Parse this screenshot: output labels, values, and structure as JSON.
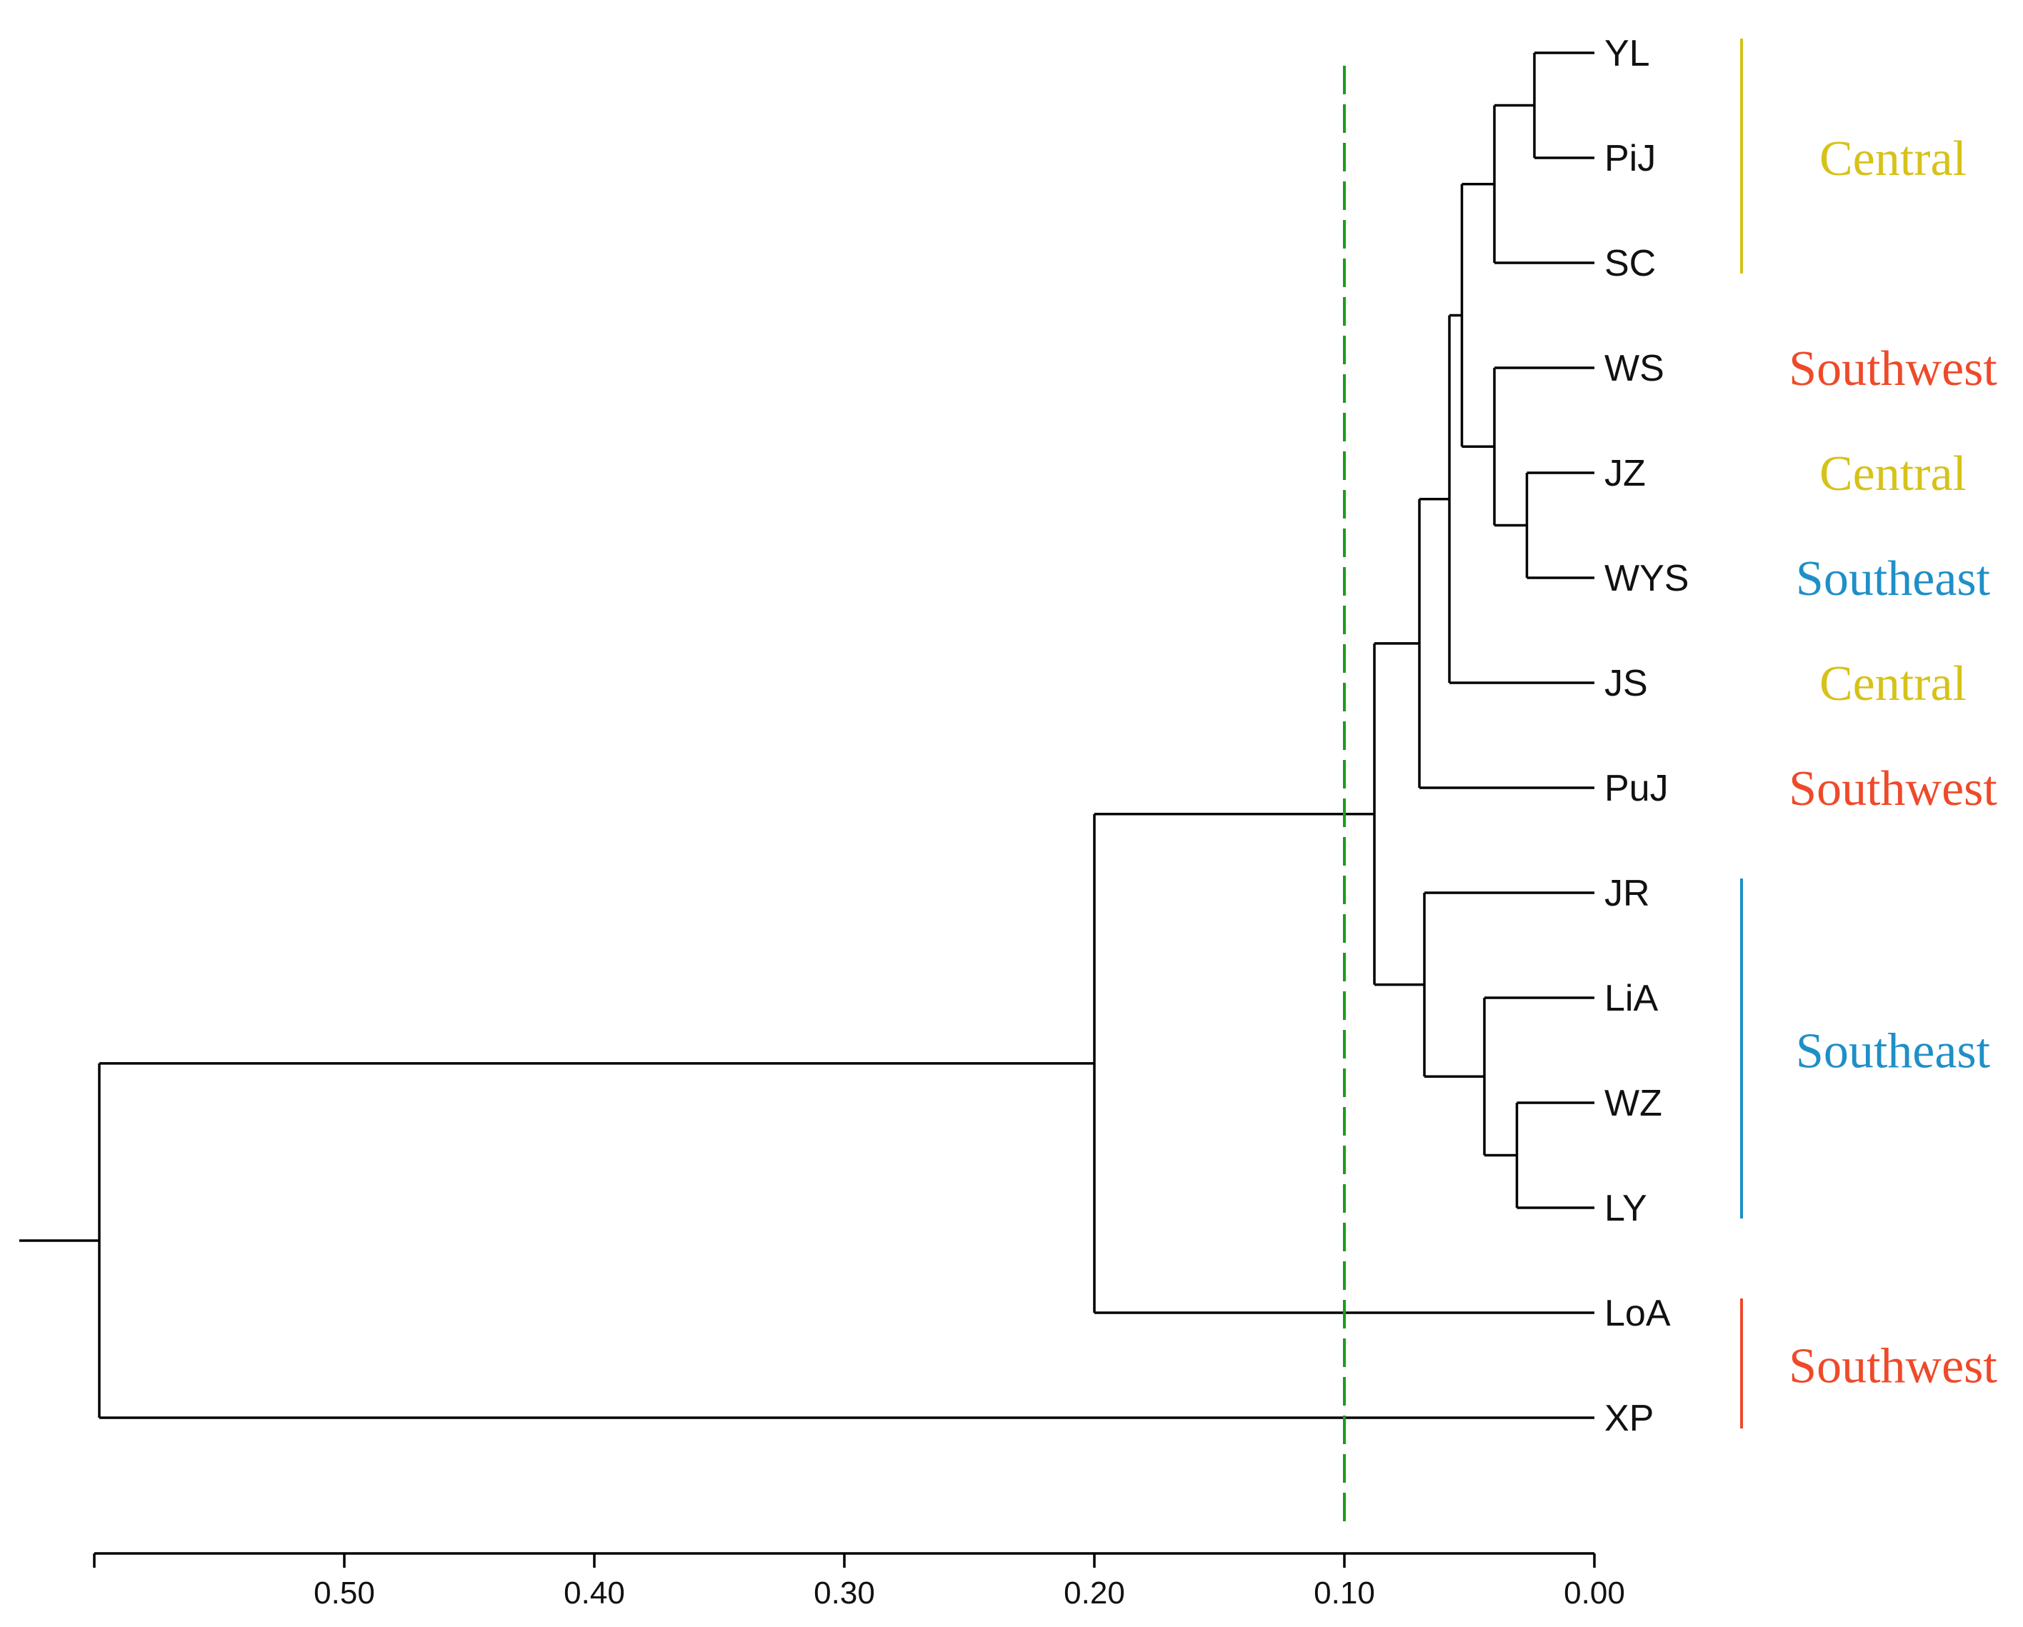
{
  "diagram": {
    "type": "dendrogram",
    "leaves": [
      "YL",
      "PiJ",
      "SC",
      "WS",
      "JZ",
      "WYS",
      "JS",
      "PuJ",
      "JR",
      "LiA",
      "WZ",
      "LY",
      "LoA",
      "XP"
    ],
    "merges": [
      {
        "id": "m1",
        "a": "YL",
        "b": "PiJ",
        "height": 0.024
      },
      {
        "id": "m2",
        "a": "m1",
        "b": "SC",
        "height": 0.04
      },
      {
        "id": "m3",
        "a": "JZ",
        "b": "WYS",
        "height": 0.027
      },
      {
        "id": "m4",
        "a": "WS",
        "b": "m3",
        "height": 0.04
      },
      {
        "id": "m5",
        "a": "m2",
        "b": "m4",
        "height": 0.053
      },
      {
        "id": "m6",
        "a": "m5",
        "b": "JS",
        "height": 0.058
      },
      {
        "id": "m7",
        "a": "m6",
        "b": "PuJ",
        "height": 0.07
      },
      {
        "id": "m8",
        "a": "WZ",
        "b": "LY",
        "height": 0.031
      },
      {
        "id": "m9",
        "a": "LiA",
        "b": "m8",
        "height": 0.044
      },
      {
        "id": "m10",
        "a": "JR",
        "b": "m9",
        "height": 0.068
      },
      {
        "id": "m11",
        "a": "m7",
        "b": "m10",
        "height": 0.088
      },
      {
        "id": "m12",
        "a": "m11",
        "b": "LoA",
        "height": 0.2
      },
      {
        "id": "m13",
        "a": "m12",
        "b": "XP",
        "height": 0.598
      }
    ],
    "cutoff": 0.1,
    "cutoff_color": "#1a9e1a",
    "root_stub": 0.63
  },
  "axis": {
    "ticks": [
      {
        "value": 0.5,
        "label": "0.50"
      },
      {
        "value": 0.4,
        "label": "0.40"
      },
      {
        "value": 0.3,
        "label": "0.30"
      },
      {
        "value": 0.2,
        "label": "0.20"
      },
      {
        "value": 0.1,
        "label": "0.10"
      },
      {
        "value": 0.0,
        "label": "0.00"
      }
    ],
    "range": [
      0.6,
      0.0
    ]
  },
  "groups": [
    {
      "label": "Central",
      "color": "#d6c21a",
      "bar": true,
      "from": "YL",
      "to": "SC"
    },
    {
      "label": "Southwest",
      "color": "#ee4a2a",
      "bar": false,
      "from": "WS",
      "to": "WS"
    },
    {
      "label": "Central",
      "color": "#d6c21a",
      "bar": false,
      "from": "JZ",
      "to": "JZ"
    },
    {
      "label": "Southeast",
      "color": "#1f8fc8",
      "bar": false,
      "from": "WYS",
      "to": "WYS"
    },
    {
      "label": "Central",
      "color": "#d6c21a",
      "bar": false,
      "from": "JS",
      "to": "JS"
    },
    {
      "label": "Southwest",
      "color": "#ee4a2a",
      "bar": false,
      "from": "PuJ",
      "to": "PuJ"
    },
    {
      "label": "Southeast",
      "color": "#1f8fc8",
      "bar": true,
      "from": "JR",
      "to": "LY"
    },
    {
      "label": "Southwest",
      "color": "#ee4a2a",
      "bar": true,
      "from": "LoA",
      "to": "XP"
    }
  ]
}
